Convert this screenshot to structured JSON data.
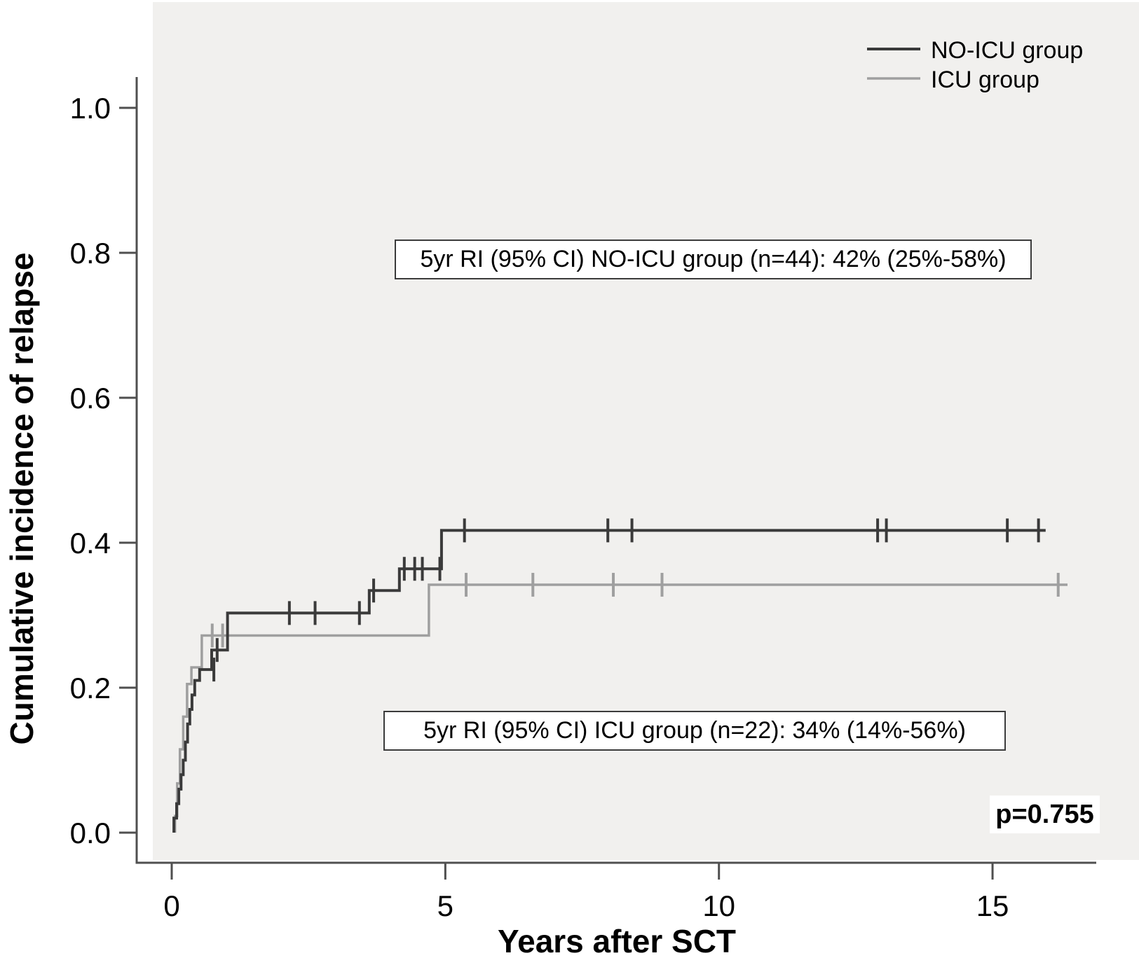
{
  "chart_data": {
    "type": "line",
    "subtype": "cumulative-incidence-step-curves-with-censor-marks",
    "title": "",
    "xlabel": "Years after SCT",
    "ylabel": "Cumulative incidence of relapse",
    "xlim": [
      -0.65,
      17.7
    ],
    "ylim": [
      0.0,
      1.04
    ],
    "x_ticks": [
      0,
      5,
      10,
      15
    ],
    "x_tick_labels": [
      "0",
      "5",
      "10",
      "15"
    ],
    "y_ticks": [
      0.0,
      0.2,
      0.4,
      0.6,
      0.8,
      1.0
    ],
    "y_tick_labels": [
      "0.0",
      "0.2",
      "0.4",
      "0.6",
      "0.8",
      "1.0"
    ],
    "grid": false,
    "legend_position": "top-right",
    "panel_background": "#f1f0ee",
    "axis_color": "#4f4f4f",
    "series": [
      {
        "name": "NO-ICU group",
        "color": "#3a3a3a",
        "n": 44,
        "five_year_RI": "42%",
        "five_year_RI_ci": "25%-58%",
        "steps": [
          [
            0.04,
            0.0
          ],
          [
            0.04,
            0.02
          ],
          [
            0.09,
            0.02
          ],
          [
            0.09,
            0.04
          ],
          [
            0.13,
            0.04
          ],
          [
            0.13,
            0.06
          ],
          [
            0.17,
            0.06
          ],
          [
            0.17,
            0.08
          ],
          [
            0.21,
            0.08
          ],
          [
            0.21,
            0.1
          ],
          [
            0.25,
            0.1
          ],
          [
            0.25,
            0.125
          ],
          [
            0.29,
            0.125
          ],
          [
            0.29,
            0.15
          ],
          [
            0.33,
            0.15
          ],
          [
            0.33,
            0.17
          ],
          [
            0.37,
            0.17
          ],
          [
            0.37,
            0.19
          ],
          [
            0.42,
            0.19
          ],
          [
            0.42,
            0.21
          ],
          [
            0.51,
            0.21
          ],
          [
            0.51,
            0.225
          ],
          [
            0.73,
            0.225
          ],
          [
            0.73,
            0.252
          ],
          [
            1.02,
            0.252
          ],
          [
            1.02,
            0.303
          ],
          [
            3.61,
            0.303
          ],
          [
            3.61,
            0.334
          ],
          [
            4.16,
            0.334
          ],
          [
            4.16,
            0.364
          ],
          [
            4.93,
            0.364
          ],
          [
            4.93,
            0.417
          ],
          [
            15.97,
            0.417
          ]
        ],
        "censor_marks": [
          [
            0.77,
            0.225
          ],
          [
            0.83,
            0.252
          ],
          [
            2.15,
            0.303
          ],
          [
            2.62,
            0.303
          ],
          [
            3.43,
            0.303
          ],
          [
            3.69,
            0.334
          ],
          [
            4.25,
            0.364
          ],
          [
            4.44,
            0.364
          ],
          [
            4.58,
            0.364
          ],
          [
            4.9,
            0.364
          ],
          [
            5.35,
            0.417
          ],
          [
            7.97,
            0.417
          ],
          [
            8.41,
            0.417
          ],
          [
            12.9,
            0.417
          ],
          [
            13.06,
            0.417
          ],
          [
            15.27,
            0.417
          ],
          [
            15.84,
            0.417
          ]
        ]
      },
      {
        "name": "ICU group",
        "color": "#9f9f9f",
        "n": 22,
        "five_year_RI": "34%",
        "five_year_RI_ci": "14%-56%",
        "steps": [
          [
            0.06,
            0.0
          ],
          [
            0.06,
            0.023
          ],
          [
            0.1,
            0.023
          ],
          [
            0.1,
            0.068
          ],
          [
            0.15,
            0.068
          ],
          [
            0.15,
            0.115
          ],
          [
            0.21,
            0.115
          ],
          [
            0.21,
            0.16
          ],
          [
            0.28,
            0.16
          ],
          [
            0.28,
            0.205
          ],
          [
            0.36,
            0.205
          ],
          [
            0.36,
            0.228
          ],
          [
            0.55,
            0.228
          ],
          [
            0.55,
            0.272
          ],
          [
            4.7,
            0.272
          ],
          [
            4.7,
            0.342
          ],
          [
            16.37,
            0.342
          ]
        ],
        "censor_marks": [
          [
            0.74,
            0.272
          ],
          [
            0.93,
            0.272
          ],
          [
            5.38,
            0.342
          ],
          [
            6.6,
            0.342
          ],
          [
            8.07,
            0.342
          ],
          [
            8.96,
            0.342
          ],
          [
            16.2,
            0.342
          ]
        ]
      }
    ],
    "annotations": {
      "no_icu_box": "5yr RI (95% CI) NO-ICU group (n=44): 42% (25%-58%)",
      "icu_box": "5yr RI (95% CI) ICU group (n=22): 34% (14%-56%)",
      "p_value": "p=0.755"
    }
  }
}
